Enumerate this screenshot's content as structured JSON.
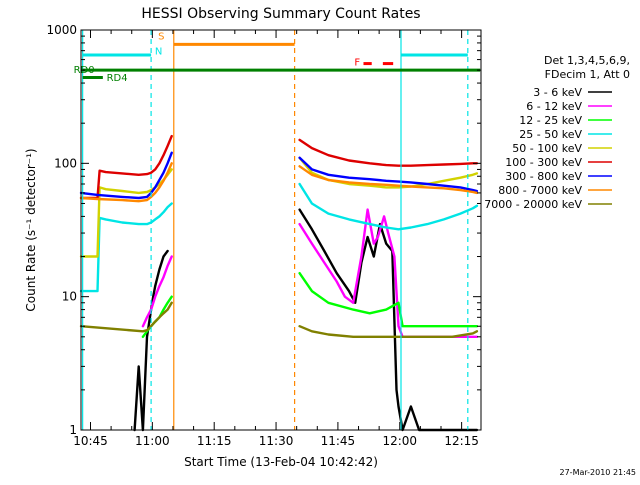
{
  "chart_data": {
    "type": "line",
    "title": "HESSI Observing Summary Count Rates",
    "xlabel": "Start Time (13-Feb-04 10:42:42)",
    "ylabel": "Count Rate (s⁻¹ detector⁻¹)",
    "x_unit": "minutes after 10:42:42",
    "xlim": [
      0,
      97
    ],
    "ylim": [
      1,
      1000
    ],
    "yscale": "log",
    "x_ticks": [
      {
        "x": 2.3,
        "label": "10:45"
      },
      {
        "x": 17.3,
        "label": "11:00"
      },
      {
        "x": 32.3,
        "label": "11:15"
      },
      {
        "x": 47.3,
        "label": "11:30"
      },
      {
        "x": 62.3,
        "label": "11:45"
      },
      {
        "x": 77.3,
        "label": "12:00"
      },
      {
        "x": 92.3,
        "label": "12:15"
      }
    ],
    "y_ticks": [
      {
        "y": 1,
        "label": "1"
      },
      {
        "y": 10,
        "label": "10"
      },
      {
        "y": 100,
        "label": "100"
      },
      {
        "y": 1000,
        "label": "1000"
      }
    ],
    "legend_header": [
      "Det 1,3,4,5,6,9,",
      "FDecim 1, Att 0"
    ],
    "legend_position": "right",
    "grid": false,
    "series": [
      {
        "name": "3 - 6 keV",
        "color": "#000000",
        "x": [
          0,
          12.5,
          13,
          14,
          15,
          16,
          17,
          17.5,
          18,
          19,
          20,
          21,
          22,
          52,
          53,
          56,
          59,
          62,
          65,
          66.5,
          68,
          69.5,
          71,
          72.5,
          74,
          75.5,
          76.5,
          77,
          78,
          80,
          82,
          85,
          90,
          95,
          96
        ],
        "y": [
          null,
          null,
          1,
          3,
          1,
          5,
          8,
          10,
          12,
          16,
          20,
          22,
          null,
          null,
          45,
          32,
          22,
          15,
          11,
          9,
          18,
          28,
          20,
          35,
          25,
          22,
          2,
          1.5,
          1,
          1.5,
          1,
          1,
          1,
          1,
          1
        ]
      },
      {
        "name": "6 - 12 keV",
        "color": "#ff00ff",
        "x": [
          0,
          15,
          16,
          17,
          18,
          19,
          20,
          21,
          22,
          52,
          53,
          56,
          59,
          62,
          64,
          66,
          68,
          69.5,
          71,
          72,
          73.5,
          74.5,
          76,
          77,
          78,
          80,
          85,
          90,
          95,
          96
        ],
        "y": [
          null,
          6,
          7,
          8,
          10,
          12,
          14,
          17,
          20,
          null,
          35,
          25,
          18,
          13,
          10,
          9,
          20,
          45,
          25,
          28,
          40,
          30,
          20,
          6,
          5,
          5,
          5,
          5,
          5,
          5
        ]
      },
      {
        "name": "12 - 25 keV",
        "color": "#00ff00",
        "x": [
          0,
          15,
          16,
          17,
          18,
          19,
          20,
          21,
          22,
          52,
          53,
          56,
          60,
          66,
          70,
          74,
          77,
          78,
          80,
          85,
          90,
          95,
          96
        ],
        "y": [
          null,
          5,
          5.5,
          6,
          6.5,
          7,
          8,
          9,
          10,
          null,
          15,
          11,
          9,
          8,
          7.5,
          8,
          9,
          6,
          6,
          6,
          6,
          6,
          6
        ]
      },
      {
        "name": "25 - 50 keV",
        "color": "#00e5e5",
        "x": [
          0,
          4,
          4.5,
          6,
          10,
          14,
          16,
          17,
          18,
          19,
          20,
          21,
          22,
          52,
          53,
          56,
          60,
          65,
          70,
          74,
          77,
          80,
          84,
          88,
          92,
          95,
          96
        ],
        "y": [
          11,
          11,
          39,
          38,
          36,
          35,
          35,
          36,
          38,
          40,
          43,
          47,
          50,
          null,
          70,
          50,
          42,
          38,
          35,
          33,
          32,
          33,
          35,
          38,
          42,
          46,
          48
        ]
      },
      {
        "name": "50 - 100 keV",
        "color": "#d2d200",
        "x": [
          0,
          4,
          4.5,
          6,
          10,
          14,
          16,
          17,
          18,
          19,
          20,
          21,
          22,
          52,
          53,
          56,
          60,
          65,
          70,
          74,
          77,
          80,
          84,
          88,
          92,
          95,
          96
        ],
        "y": [
          20,
          20,
          66,
          64,
          62,
          60,
          61,
          63,
          66,
          70,
          75,
          82,
          90,
          null,
          110,
          85,
          75,
          70,
          68,
          66,
          66,
          67,
          70,
          74,
          78,
          82,
          84
        ]
      },
      {
        "name": "100 - 300 keV",
        "color": "#dd0000",
        "x": [
          0,
          4,
          4.5,
          6,
          10,
          14,
          16,
          17,
          18,
          19,
          20,
          21,
          22,
          52,
          53,
          56,
          60,
          65,
          70,
          74,
          77,
          80,
          84,
          88,
          92,
          95,
          96
        ],
        "y": [
          55,
          55,
          88,
          86,
          84,
          82,
          83,
          85,
          90,
          100,
          115,
          135,
          160,
          null,
          150,
          130,
          115,
          105,
          100,
          97,
          96,
          96,
          97,
          98,
          99,
          100,
          100
        ]
      },
      {
        "name": "300 - 800 keV",
        "color": "#0000ff",
        "x": [
          0,
          4,
          10,
          14,
          16,
          17,
          18,
          19,
          20,
          21,
          22,
          52,
          53,
          56,
          60,
          65,
          70,
          74,
          77,
          80,
          84,
          88,
          92,
          95,
          96
        ],
        "y": [
          60,
          58,
          56,
          55,
          56,
          60,
          66,
          75,
          85,
          100,
          120,
          null,
          110,
          90,
          82,
          78,
          76,
          74,
          73,
          72,
          70,
          68,
          66,
          63,
          62
        ]
      },
      {
        "name": "800 - 7000 keV",
        "color": "#ff8800",
        "x": [
          0,
          4,
          10,
          14,
          16,
          17,
          18,
          19,
          20,
          21,
          22,
          52,
          53,
          56,
          60,
          65,
          70,
          74,
          77,
          80,
          84,
          88,
          92,
          95,
          96
        ],
        "y": [
          55,
          54,
          53,
          52,
          53,
          56,
          60,
          66,
          74,
          85,
          100,
          null,
          95,
          82,
          75,
          72,
          70,
          69,
          68,
          67,
          66,
          65,
          63,
          61,
          60
        ]
      },
      {
        "name": "7000 - 20000 keV",
        "color": "#808000",
        "x": [
          0,
          15,
          16,
          17,
          18,
          19,
          20,
          21,
          22,
          52,
          53,
          56,
          60,
          66,
          70,
          74,
          77,
          80,
          85,
          90,
          95,
          96
        ],
        "y": [
          6,
          5.5,
          5.6,
          6,
          6.5,
          7,
          7.5,
          8,
          9,
          null,
          6,
          5.5,
          5.2,
          5,
          5,
          5,
          5,
          5,
          5,
          5,
          5.3,
          5.5
        ]
      }
    ],
    "overlays": {
      "lines": [
        {
          "kind": "vline",
          "x": 0.4,
          "color": "#00e5e5",
          "style": "solid"
        },
        {
          "kind": "vline",
          "x": 17.0,
          "color": "#00e5e5",
          "style": "dashed"
        },
        {
          "kind": "vline",
          "x": 22.5,
          "color": "#ff8800",
          "style": "solid"
        },
        {
          "kind": "vline",
          "x": 51.8,
          "color": "#ff8800",
          "style": "dashed"
        },
        {
          "kind": "vline",
          "x": 77.6,
          "color": "#00e5e5",
          "style": "solid"
        },
        {
          "kind": "vline",
          "x": 93.8,
          "color": "#00e5e5",
          "style": "dashed"
        },
        {
          "kind": "hline",
          "x1": 0.4,
          "x2": 17.0,
          "y": 650,
          "color": "#00e5e5",
          "style": "solid"
        },
        {
          "kind": "hline",
          "x1": 77.6,
          "x2": 93.8,
          "y": 650,
          "color": "#00e5e5",
          "style": "solid"
        },
        {
          "kind": "hline",
          "x1": 22.5,
          "x2": 51.8,
          "y": 780,
          "color": "#ff8800",
          "style": "solid"
        },
        {
          "kind": "hline",
          "x1": 0.4,
          "x2": 96.8,
          "y": 500,
          "color": "#008000",
          "style": "solid"
        },
        {
          "kind": "hline",
          "x1": 0.4,
          "x2": 5.3,
          "y": 440,
          "color": "#008000",
          "style": "solid"
        },
        {
          "kind": "hline",
          "x1": 68.5,
          "x2": 70.5,
          "y": 560,
          "color": "#ff0000",
          "style": "solid"
        },
        {
          "kind": "hline",
          "x1": 73.2,
          "x2": 75.7,
          "y": 560,
          "color": "#ff0000",
          "style": "solid"
        }
      ],
      "labels": [
        {
          "text": "RD0",
          "x": -1.8,
          "y": 510,
          "color": "#008000"
        },
        {
          "text": "RD4",
          "x": 6.2,
          "y": 445,
          "color": "#008000"
        },
        {
          "text": "S",
          "x": 18.7,
          "y": 910,
          "color": "#ff8800"
        },
        {
          "text": "N",
          "x": 17.9,
          "y": 700,
          "color": "#00e5e5"
        },
        {
          "text": "F",
          "x": 66.3,
          "y": 580,
          "color": "#ff0000"
        }
      ]
    }
  },
  "footer": {
    "timestamp": "27-Mar-2010 21:45"
  }
}
